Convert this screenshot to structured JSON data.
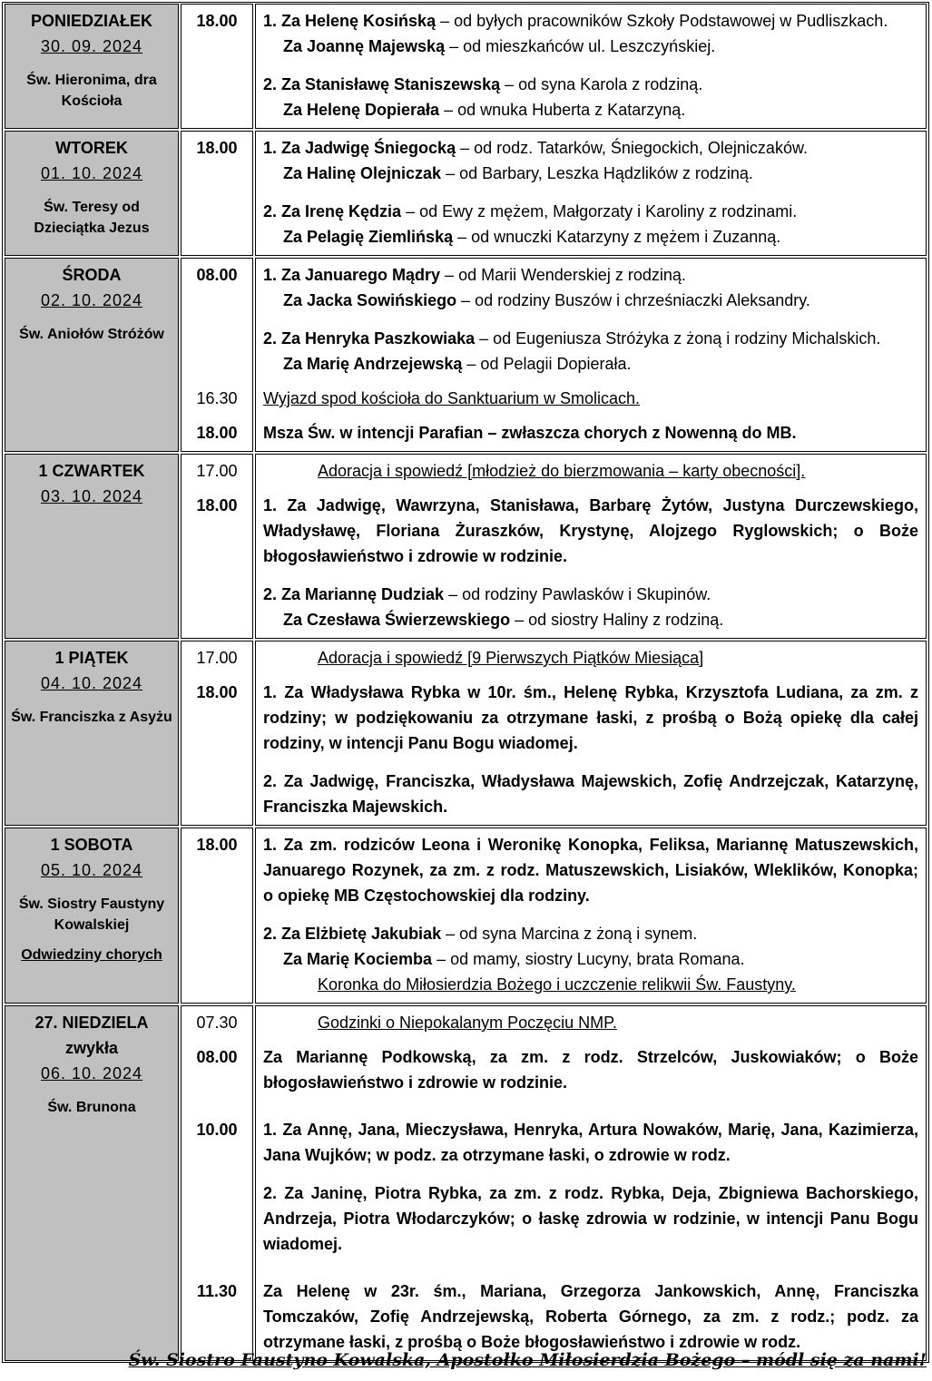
{
  "days": [
    {
      "name": "PONIEDZIAŁEK",
      "date": "30. 09. 2024",
      "saint": "Św. Hieronima, dra Kościoła",
      "blocks": [
        {
          "time": "18.00",
          "time_bold": true,
          "paras": [
            {
              "segs": [
                {
                  "b": "1. Za Helenę Kosińską"
                },
                {
                  "t": " – od byłych pracowników Szkoły Podstawowej w Pudliszkach."
                }
              ]
            },
            {
              "style": "ind",
              "segs": [
                {
                  "b": "Za Joannę Majewską"
                },
                {
                  "t": " – od mieszkańców ul. Leszczyńskiej."
                }
              ]
            },
            {
              "gap": true,
              "segs": [
                {
                  "b": "2. Za Stanisławę Staniszewską"
                },
                {
                  "t": " – od syna Karola z rodziną."
                }
              ]
            },
            {
              "style": "ind",
              "segs": [
                {
                  "b": "Za Helenę Dopierała"
                },
                {
                  "t": " – od wnuka Huberta z Katarzyną."
                }
              ]
            }
          ]
        }
      ]
    },
    {
      "name": "WTOREK",
      "date": "01. 10. 2024",
      "saint": "Św. Teresy od Dzieciątka Jezus",
      "blocks": [
        {
          "time": "18.00",
          "time_bold": true,
          "paras": [
            {
              "segs": [
                {
                  "b": "1. Za Jadwigę Śniegocką"
                },
                {
                  "t": " – od rodz. Tatarków, Śniegockich, Olejniczaków."
                }
              ]
            },
            {
              "style": "ind",
              "segs": [
                {
                  "b": "Za Halinę Olejniczak"
                },
                {
                  "t": " – od Barbary, Leszka Hądzlików z rodziną."
                }
              ]
            },
            {
              "gap": true,
              "segs": [
                {
                  "b": "2. Za Irenę Kędzia"
                },
                {
                  "t": " – od Ewy z mężem, Małgorzaty i Karoliny z rodzinami."
                }
              ]
            },
            {
              "style": "ind",
              "segs": [
                {
                  "b": "Za Pelagię Ziemlińską"
                },
                {
                  "t": " – od wnuczki Katarzyny z mężem i Zuzanną."
                }
              ]
            }
          ]
        }
      ]
    },
    {
      "name": "ŚRODA",
      "date": "02. 10. 2024",
      "saint": "Św. Aniołów Stróżów",
      "blocks": [
        {
          "time": "08.00",
          "time_bold": true,
          "paras": [
            {
              "segs": [
                {
                  "b": "1. Za Januarego Mądry"
                },
                {
                  "t": " – od Marii Wenderskiej z rodziną."
                }
              ]
            },
            {
              "style": "ind",
              "segs": [
                {
                  "b": "Za Jacka Sowińskiego"
                },
                {
                  "t": " – od rodziny Buszów i chrześniaczki Aleksandry."
                }
              ]
            },
            {
              "gap": true,
              "segs": [
                {
                  "b": "2. Za Henryka Paszkowiaka"
                },
                {
                  "t": " – od Eugeniusza Stróżyka z żoną i rodziny Michalskich."
                }
              ]
            },
            {
              "style": "ind",
              "segs": [
                {
                  "b": "Za Marię Andrzejewską"
                },
                {
                  "t": " – od Pelagii Dopierała."
                }
              ]
            }
          ]
        },
        {
          "time": "16.30",
          "time_bold": false,
          "paras": [
            {
              "style": "ul",
              "segs": [
                {
                  "t": "Wyjazd spod kościoła do Sanktuarium w Smolicach."
                }
              ]
            }
          ]
        },
        {
          "time": "18.00",
          "time_bold": true,
          "paras": [
            {
              "segs": [
                {
                  "b": "Msza Św. w intencji Parafian – zwłaszcza chorych z Nowenną do MB."
                }
              ]
            }
          ]
        }
      ]
    },
    {
      "name": "1 CZWARTEK",
      "date": "03. 10. 2024",
      "blocks": [
        {
          "time": "17.00",
          "time_bold": false,
          "paras": [
            {
              "style": "ad",
              "segs": [
                {
                  "t": "Adoracja i spowiedź [młodzież do bierzmowania – karty obecności]."
                }
              ]
            }
          ]
        },
        {
          "time": "18.00",
          "time_bold": true,
          "paras": [
            {
              "segs": [
                {
                  "b": "1. Za Jadwigę, Wawrzyna, Stanisława, Barbarę Żytów, Justyna Durczewskiego, Władysławę, Floriana Żuraszków, Krystynę, Alojzego Ryglowskich; o Boże błogosławieństwo i zdrowie w rodzinie."
                }
              ]
            },
            {
              "gap": true,
              "segs": [
                {
                  "b": "2. Za Mariannę Dudziak"
                },
                {
                  "t": " – od rodziny Pawlasków i Skupinów."
                }
              ]
            },
            {
              "style": "ind",
              "segs": [
                {
                  "b": "Za Czesława Świerzewskiego"
                },
                {
                  "t": " – od siostry Haliny z rodziną."
                }
              ]
            }
          ]
        }
      ]
    },
    {
      "name": "1 PIĄTEK",
      "date": "04. 10. 2024",
      "saint": "Św. Franciszka z Asyżu",
      "blocks": [
        {
          "time": "17.00",
          "time_bold": false,
          "paras": [
            {
              "style": "ad",
              "segs": [
                {
                  "t": "Adoracja i spowiedź [9 Pierwszych Piątków Miesiąca]"
                }
              ]
            }
          ]
        },
        {
          "time": "18.00",
          "time_bold": true,
          "paras": [
            {
              "segs": [
                {
                  "b": "1. Za Władysława Rybka w 10r. śm., Helenę Rybka, Krzysztofa Ludiana, za zm. z rodziny; w podziękowaniu za otrzymane łaski, z prośbą o Bożą opiekę dla całej rodziny, w intencji Panu Bogu wiadomej."
                }
              ]
            },
            {
              "gap": true,
              "segs": [
                {
                  "b": "2. Za Jadwigę, Franciszka, Władysława Majewskich, Zofię Andrzejczak, Katarzynę, Franciszka Majewskich."
                }
              ]
            }
          ]
        }
      ]
    },
    {
      "name": "1 SOBOTA",
      "date": "05. 10. 2024",
      "saint": "Św. Siostry Faustyny Kowalskiej",
      "extra": "Odwiedziny chorych",
      "blocks": [
        {
          "time": "18.00",
          "time_bold": true,
          "paras": [
            {
              "segs": [
                {
                  "b": "1. Za zm. rodziców Leona i Weronikę Konopka, Feliksa, Mariannę Matuszewskich, Januarego Rozynek, za zm. z rodz. Matuszewskich, Lisiaków, Wleklików, Konopka; o opiekę MB Częstochowskiej dla rodziny."
                }
              ]
            },
            {
              "gap": true,
              "segs": [
                {
                  "b": "2. Za Elżbietę Jakubiak"
                },
                {
                  "t": " – od syna Marcina z żoną i synem."
                }
              ]
            },
            {
              "style": "ind",
              "segs": [
                {
                  "b": "Za Marię Kociemba"
                },
                {
                  "t": " – od mamy, siostry Lucyny, brata Romana."
                }
              ]
            },
            {
              "style": "ad",
              "segs": [
                {
                  "t": "Koronka do Miłosierdzia Bożego i uczczenie relikwii Św. Faustyny."
                }
              ]
            }
          ]
        }
      ]
    },
    {
      "name": "27. NIEDZIELA\nzwykła",
      "date": "06. 10. 2024",
      "saint": "Św. Brunona",
      "blocks": [
        {
          "time": "07.30",
          "time_bold": false,
          "paras": [
            {
              "style": "ad",
              "segs": [
                {
                  "t": "Godzinki o Niepokalanym Poczęciu NMP."
                }
              ]
            }
          ]
        },
        {
          "time": "08.00",
          "time_bold": true,
          "paras": [
            {
              "segs": [
                {
                  "b": "Za Mariannę Podkowską, za zm. z rodz. Strzelców, Juskowiaków; o Boże błogosławieństwo i zdrowie w rodzinie."
                }
              ]
            }
          ]
        },
        {
          "time": "10.00",
          "time_bold": true,
          "gap": true,
          "paras": [
            {
              "segs": [
                {
                  "b": "1. Za Annę, Jana, Mieczysława, Henryka, Artura Nowaków, Marię, Jana, Kazimierza, Jana Wujków; w podz. za otrzymane łaski, o zdrowie w rodz."
                }
              ]
            },
            {
              "gap": true,
              "segs": [
                {
                  "b": "2. Za Janinę, Piotra Rybka, za zm. z rodz. Rybka, Deja, Zbigniewa Bachorskiego, Andrzeja, Piotra Włodarczyków; o łaskę zdrowia w rodzinie, w intencji Panu Bogu wiadomej."
                }
              ]
            }
          ]
        },
        {
          "time": "11.30",
          "time_bold": true,
          "gap": true,
          "paras": [
            {
              "segs": [
                {
                  "b": "Za Helenę w 23r. śm., Mariana, Grzegorza Jankowskich, Annę, Franciszka Tomczaków, Zofię Andrzejewską, Roberta Górnego, za zm. z rodz.; podz. za otrzymane łaski, z prośbą o Boże błogosławieństwo i zdrowie w rodz."
                }
              ]
            }
          ]
        }
      ]
    }
  ],
  "footer": {
    "motto": "Św. Siostro Faustyno Kowalska, Apostołko Miłosierdzia Bożego  – módl się za nami!"
  },
  "colors": {
    "day_cell_bg": "#c0c0c0"
  }
}
